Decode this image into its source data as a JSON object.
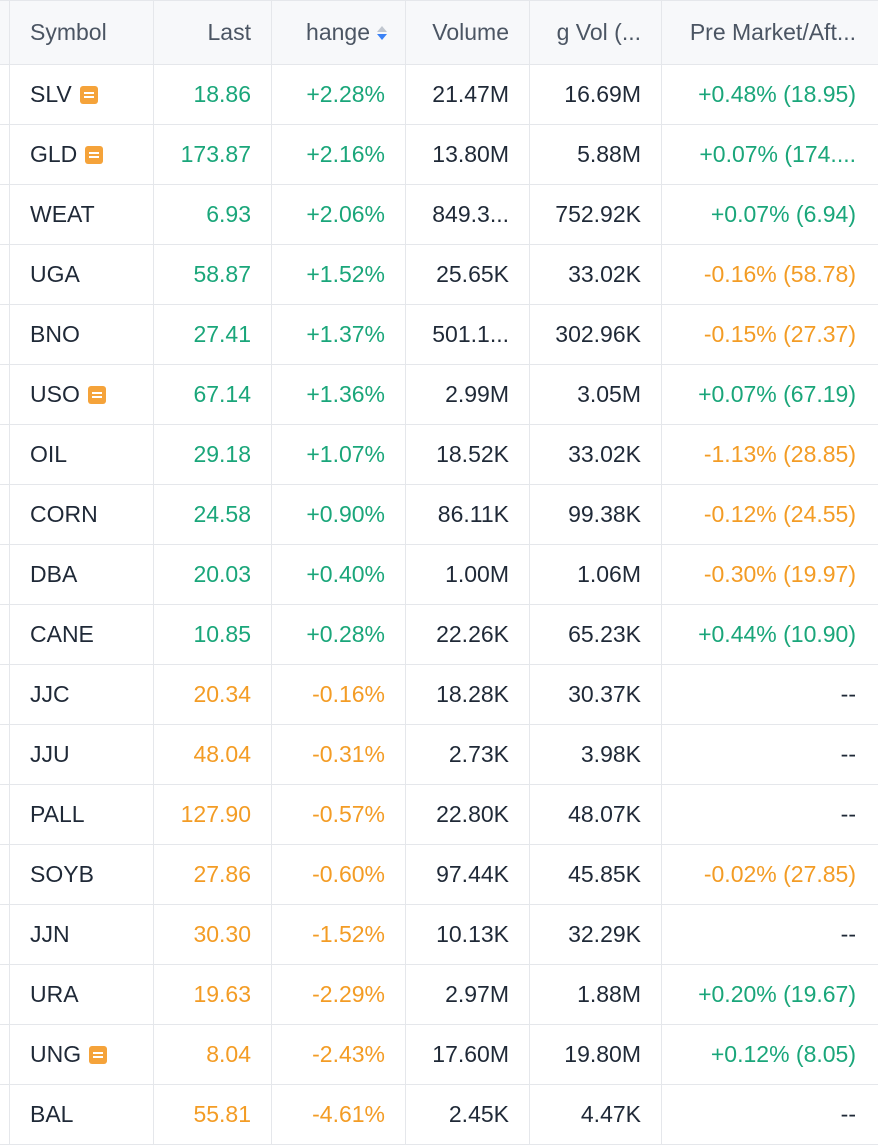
{
  "header": {
    "symbol": "Symbol",
    "last": "Last",
    "change": "hange",
    "volume": "Volume",
    "avg_vol": "g Vol (...",
    "pre_market": "Pre Market/Aft..."
  },
  "colors": {
    "positive": "#1aa67a",
    "negative": "#f39c25",
    "note_icon": "#f5a33a"
  },
  "rows": [
    {
      "symbol": "SLV",
      "note": true,
      "last": "18.86",
      "change": "+2.28%",
      "volume": "21.47M",
      "avg_vol": "16.69M",
      "pre_market": "+0.48% (18.95)",
      "dir": "pos",
      "pm_dir": "pos"
    },
    {
      "symbol": "GLD",
      "note": true,
      "last": "173.87",
      "change": "+2.16%",
      "volume": "13.80M",
      "avg_vol": "5.88M",
      "pre_market": "+0.07% (174....",
      "dir": "pos",
      "pm_dir": "pos"
    },
    {
      "symbol": "WEAT",
      "note": false,
      "last": "6.93",
      "change": "+2.06%",
      "volume": "849.3...",
      "avg_vol": "752.92K",
      "pre_market": "+0.07% (6.94)",
      "dir": "pos",
      "pm_dir": "pos"
    },
    {
      "symbol": "UGA",
      "note": false,
      "last": "58.87",
      "change": "+1.52%",
      "volume": "25.65K",
      "avg_vol": "33.02K",
      "pre_market": "-0.16% (58.78)",
      "dir": "pos",
      "pm_dir": "neg"
    },
    {
      "symbol": "BNO",
      "note": false,
      "last": "27.41",
      "change": "+1.37%",
      "volume": "501.1...",
      "avg_vol": "302.96K",
      "pre_market": "-0.15% (27.37)",
      "dir": "pos",
      "pm_dir": "neg"
    },
    {
      "symbol": "USO",
      "note": true,
      "last": "67.14",
      "change": "+1.36%",
      "volume": "2.99M",
      "avg_vol": "3.05M",
      "pre_market": "+0.07% (67.19)",
      "dir": "pos",
      "pm_dir": "pos"
    },
    {
      "symbol": "OIL",
      "note": false,
      "last": "29.18",
      "change": "+1.07%",
      "volume": "18.52K",
      "avg_vol": "33.02K",
      "pre_market": "-1.13% (28.85)",
      "dir": "pos",
      "pm_dir": "neg"
    },
    {
      "symbol": "CORN",
      "note": false,
      "last": "24.58",
      "change": "+0.90%",
      "volume": "86.11K",
      "avg_vol": "99.38K",
      "pre_market": "-0.12% (24.55)",
      "dir": "pos",
      "pm_dir": "neg"
    },
    {
      "symbol": "DBA",
      "note": false,
      "last": "20.03",
      "change": "+0.40%",
      "volume": "1.00M",
      "avg_vol": "1.06M",
      "pre_market": "-0.30% (19.97)",
      "dir": "pos",
      "pm_dir": "neg"
    },
    {
      "symbol": "CANE",
      "note": false,
      "last": "10.85",
      "change": "+0.28%",
      "volume": "22.26K",
      "avg_vol": "65.23K",
      "pre_market": "+0.44% (10.90)",
      "dir": "pos",
      "pm_dir": "pos"
    },
    {
      "symbol": "JJC",
      "note": false,
      "last": "20.34",
      "change": "-0.16%",
      "volume": "18.28K",
      "avg_vol": "30.37K",
      "pre_market": "--",
      "dir": "neg",
      "pm_dir": "neu"
    },
    {
      "symbol": "JJU",
      "note": false,
      "last": "48.04",
      "change": "-0.31%",
      "volume": "2.73K",
      "avg_vol": "3.98K",
      "pre_market": "--",
      "dir": "neg",
      "pm_dir": "neu"
    },
    {
      "symbol": "PALL",
      "note": false,
      "last": "127.90",
      "change": "-0.57%",
      "volume": "22.80K",
      "avg_vol": "48.07K",
      "pre_market": "--",
      "dir": "neg",
      "pm_dir": "neu"
    },
    {
      "symbol": "SOYB",
      "note": false,
      "last": "27.86",
      "change": "-0.60%",
      "volume": "97.44K",
      "avg_vol": "45.85K",
      "pre_market": "-0.02% (27.85)",
      "dir": "neg",
      "pm_dir": "neg"
    },
    {
      "symbol": "JJN",
      "note": false,
      "last": "30.30",
      "change": "-1.52%",
      "volume": "10.13K",
      "avg_vol": "32.29K",
      "pre_market": "--",
      "dir": "neg",
      "pm_dir": "neu"
    },
    {
      "symbol": "URA",
      "note": false,
      "last": "19.63",
      "change": "-2.29%",
      "volume": "2.97M",
      "avg_vol": "1.88M",
      "pre_market": "+0.20% (19.67)",
      "dir": "neg",
      "pm_dir": "pos"
    },
    {
      "symbol": "UNG",
      "note": true,
      "last": "8.04",
      "change": "-2.43%",
      "volume": "17.60M",
      "avg_vol": "19.80M",
      "pre_market": "+0.12% (8.05)",
      "dir": "neg",
      "pm_dir": "pos"
    },
    {
      "symbol": "BAL",
      "note": false,
      "last": "55.81",
      "change": "-4.61%",
      "volume": "2.45K",
      "avg_vol": "4.47K",
      "pre_market": "--",
      "dir": "neg",
      "pm_dir": "neu"
    }
  ]
}
